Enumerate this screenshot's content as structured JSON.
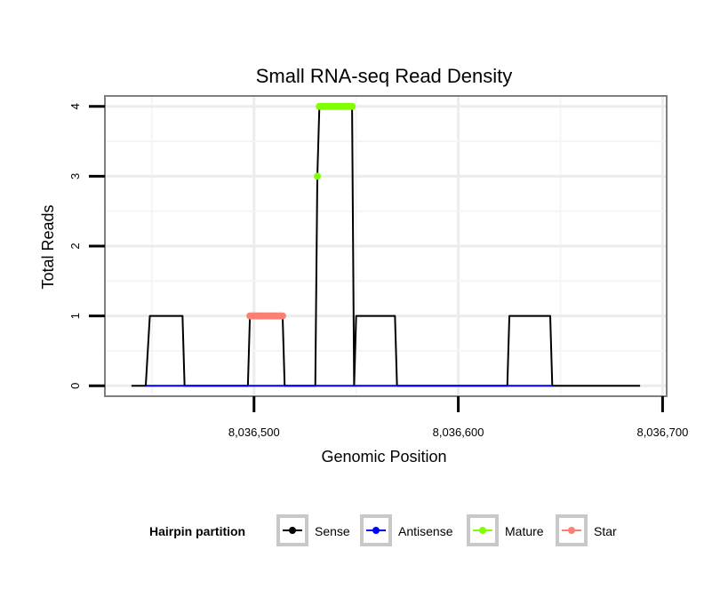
{
  "chart_data": {
    "type": "line",
    "title": "Small RNA-seq Read Density",
    "xlabel": "Genomic Position",
    "ylabel": "Total Reads",
    "xlim": [
      8036427,
      8036702
    ],
    "ylim": [
      -0.15,
      4.15
    ],
    "x_ticks": [
      8036500,
      8036600,
      8036700
    ],
    "x_tick_labels": [
      "8,036,500",
      "8,036,600",
      "8,036,700"
    ],
    "y_ticks": [
      0,
      1,
      2,
      3,
      4
    ],
    "y_tick_labels": [
      "0",
      "1",
      "2",
      "3",
      "4"
    ],
    "grid": true,
    "legend": {
      "title": "Hairpin partition",
      "position": "bottom",
      "entries": [
        "Sense",
        "Antisense",
        "Mature",
        "Star"
      ]
    },
    "series": [
      {
        "name": "Sense",
        "color": "#000000",
        "points": [
          [
            8036440,
            0
          ],
          [
            8036447,
            0
          ],
          [
            8036449,
            1
          ],
          [
            8036465,
            1
          ],
          [
            8036466,
            0
          ],
          [
            8036497,
            0
          ],
          [
            8036498,
            1
          ],
          [
            8036514,
            1
          ],
          [
            8036515,
            0
          ],
          [
            8036530,
            0
          ],
          [
            8036531,
            3
          ],
          [
            8036532,
            4
          ],
          [
            8036548,
            4
          ],
          [
            8036549,
            0
          ],
          [
            8036550,
            1
          ],
          [
            8036569,
            1
          ],
          [
            8036570,
            0
          ],
          [
            8036624,
            0
          ],
          [
            8036625,
            1
          ],
          [
            8036645,
            1
          ],
          [
            8036646,
            0
          ],
          [
            8036689,
            0
          ]
        ]
      },
      {
        "name": "Antisense",
        "color": "#0000ff",
        "points": [
          [
            8036447,
            0
          ],
          [
            8036466,
            0
          ],
          [
            8036497,
            0
          ],
          [
            8036515,
            0
          ],
          [
            8036530,
            0
          ],
          [
            8036549,
            0
          ],
          [
            8036550,
            0
          ],
          [
            8036570,
            0
          ],
          [
            8036624,
            0
          ],
          [
            8036646,
            0
          ]
        ]
      },
      {
        "name": "Mature",
        "color": "#7fff00",
        "points": [
          [
            8036531,
            3
          ],
          [
            8036532,
            4
          ],
          [
            8036533,
            4
          ],
          [
            8036534,
            4
          ],
          [
            8036535,
            4
          ],
          [
            8036536,
            4
          ],
          [
            8036537,
            4
          ],
          [
            8036538,
            4
          ],
          [
            8036539,
            4
          ],
          [
            8036540,
            4
          ],
          [
            8036541,
            4
          ],
          [
            8036542,
            4
          ],
          [
            8036543,
            4
          ],
          [
            8036544,
            4
          ],
          [
            8036545,
            4
          ],
          [
            8036546,
            4
          ],
          [
            8036547,
            4
          ],
          [
            8036548,
            4
          ]
        ]
      },
      {
        "name": "Star",
        "color": "#fa8072",
        "points": [
          [
            8036498,
            1
          ],
          [
            8036499,
            1
          ],
          [
            8036500,
            1
          ],
          [
            8036501,
            1
          ],
          [
            8036502,
            1
          ],
          [
            8036503,
            1
          ],
          [
            8036504,
            1
          ],
          [
            8036505,
            1
          ],
          [
            8036506,
            1
          ],
          [
            8036507,
            1
          ],
          [
            8036508,
            1
          ],
          [
            8036509,
            1
          ],
          [
            8036510,
            1
          ],
          [
            8036511,
            1
          ],
          [
            8036512,
            1
          ],
          [
            8036513,
            1
          ],
          [
            8036514,
            1
          ]
        ]
      }
    ]
  }
}
